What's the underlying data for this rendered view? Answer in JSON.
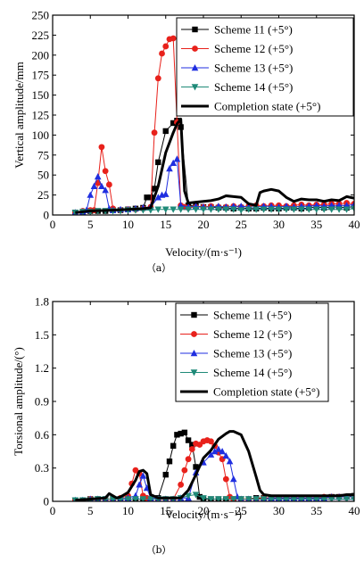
{
  "chart_data": [
    {
      "type": "line",
      "caption": "（a）",
      "xlabel": "Velocity/(m·s⁻¹)",
      "ylabel": "Vertical amplitude/mm",
      "xlim": [
        0,
        40
      ],
      "ylim": [
        0,
        250
      ],
      "xticks": [
        0,
        5,
        10,
        15,
        20,
        25,
        30,
        35,
        40
      ],
      "xtick_labels": [
        "0",
        "5",
        "10",
        "15",
        "20",
        "25",
        "30",
        "35",
        "40"
      ],
      "yticks": [
        0,
        25,
        50,
        75,
        100,
        125,
        150,
        175,
        200,
        225,
        250
      ],
      "ytick_labels": [
        "0",
        "25",
        "50",
        "75",
        "100",
        "125",
        "150",
        "175",
        "200",
        "225",
        "250"
      ],
      "legend_position": "top-right",
      "series": [
        {
          "name": "Scheme 11 (+5°)",
          "color": "#000000",
          "marker": "square",
          "line_width": 1,
          "x": [
            3,
            4,
            5,
            6,
            7,
            8,
            9,
            10,
            11,
            12,
            12.5,
            13,
            13.5,
            14,
            15,
            16,
            16.5,
            17,
            18,
            19,
            20,
            21,
            22,
            23,
            24,
            25,
            26,
            27,
            28,
            29,
            30,
            31,
            32,
            33,
            34,
            35,
            36,
            37,
            38,
            39,
            40
          ],
          "y": [
            3,
            4,
            5,
            5,
            5,
            6,
            6,
            7,
            8,
            9,
            22,
            22,
            33,
            66,
            105,
            115,
            118,
            110,
            12,
            11,
            10,
            10,
            9,
            9,
            8,
            9,
            8,
            8,
            9,
            8,
            8,
            9,
            9,
            8,
            9,
            10,
            9,
            10,
            10,
            9,
            11
          ]
        },
        {
          "name": "Scheme 12 (+5°)",
          "color": "#e8211b",
          "marker": "circle",
          "line_width": 1,
          "x": [
            3,
            4,
            5,
            5.5,
            6,
            6.5,
            7,
            7.5,
            8,
            9,
            10,
            11,
            12,
            13,
            13.5,
            14,
            14.5,
            15,
            15.5,
            16,
            16.5,
            17,
            17.5,
            18,
            19,
            20,
            21,
            22,
            23,
            24,
            25,
            26,
            27,
            28,
            29,
            30,
            31,
            32,
            33,
            34,
            35,
            36,
            37,
            38,
            39,
            40
          ],
          "y": [
            3,
            5,
            6,
            6,
            40,
            85,
            55,
            38,
            8,
            6,
            7,
            7,
            8,
            10,
            103,
            171,
            202,
            211,
            220,
            221,
            116,
            12,
            10,
            9,
            10,
            10,
            11,
            10,
            10,
            11,
            10,
            11,
            12,
            11,
            12,
            12,
            11,
            12,
            13,
            12,
            13,
            13,
            14,
            14,
            15,
            14
          ]
        },
        {
          "name": "Scheme 13 (+5°)",
          "color": "#1f2ee0",
          "marker": "triangle-up",
          "line_width": 1,
          "x": [
            3,
            4,
            4.5,
            5,
            5.5,
            6,
            6.5,
            7,
            7.5,
            8,
            9,
            10,
            11,
            12,
            13,
            14,
            14.5,
            15,
            15.5,
            16,
            16.5,
            17,
            18,
            19,
            20,
            21,
            22,
            23,
            24,
            25,
            26,
            27,
            28,
            29,
            30,
            31,
            32,
            33,
            34,
            35,
            36,
            37,
            38,
            39,
            40
          ],
          "y": [
            3,
            4,
            6,
            25,
            36,
            48,
            36,
            31,
            8,
            6,
            7,
            7,
            8,
            9,
            10,
            22,
            25,
            26,
            58,
            65,
            70,
            12,
            10,
            11,
            10,
            10,
            11,
            10,
            11,
            11,
            10,
            10,
            11,
            11,
            10,
            11,
            10,
            11,
            11,
            12,
            11,
            12,
            12,
            12,
            13
          ]
        },
        {
          "name": "Scheme 14 (+5°)",
          "color": "#1f8a78",
          "marker": "triangle-down",
          "line_width": 1,
          "x": [
            3,
            4,
            5,
            6,
            7,
            8,
            9,
            10,
            11,
            12,
            13,
            14,
            15,
            16,
            17,
            18,
            19,
            20,
            21,
            22,
            23,
            24,
            25,
            26,
            27,
            28,
            29,
            30,
            31,
            32,
            33,
            34,
            35,
            36,
            37,
            38,
            39,
            40
          ],
          "y": [
            3,
            4,
            4,
            5,
            5,
            5,
            5,
            6,
            6,
            6,
            6,
            7,
            7,
            7,
            7,
            7,
            7,
            7,
            7,
            7,
            7,
            7,
            6,
            7,
            7,
            7,
            7,
            7,
            7,
            7,
            7,
            7,
            7,
            7,
            7,
            7,
            7,
            8
          ]
        },
        {
          "name": "Completion state (+5°)",
          "color": "#000000",
          "marker": "none",
          "line_width": 3,
          "x": [
            3,
            5,
            8,
            10,
            12,
            13,
            14,
            15,
            16,
            16.5,
            17,
            17.5,
            18,
            19,
            20,
            21,
            22,
            23,
            24,
            25,
            26,
            27,
            27.5,
            28,
            29,
            30,
            31,
            32,
            33,
            34,
            35,
            36,
            37,
            38,
            39,
            40
          ],
          "y": [
            3,
            5,
            6,
            7,
            8,
            9,
            36,
            78,
            103,
            114,
            120,
            30,
            15,
            16,
            17,
            18,
            20,
            24,
            23,
            22,
            14,
            12,
            28,
            30,
            32,
            30,
            22,
            17,
            20,
            19,
            19,
            17,
            19,
            18,
            23,
            21
          ]
        }
      ]
    },
    {
      "type": "line",
      "caption": "（b）",
      "xlabel": "Velocity/(m·s⁻¹)",
      "ylabel": "Torsional amplitude/(°)",
      "xlim": [
        0,
        40
      ],
      "ylim": [
        0,
        1.8
      ],
      "xticks": [
        0,
        5,
        10,
        15,
        20,
        25,
        30,
        35,
        40
      ],
      "xtick_labels": [
        "0",
        "5",
        "10",
        "15",
        "20",
        "25",
        "30",
        "35",
        "40"
      ],
      "yticks": [
        0,
        0.3,
        0.6,
        0.9,
        1.2,
        1.5,
        1.8
      ],
      "ytick_labels": [
        "0",
        "0.3",
        "0.6",
        "0.9",
        "1.2",
        "1.5",
        "1.8"
      ],
      "legend_position": "top-right",
      "series": [
        {
          "name": "Scheme 11 (+5°)",
          "color": "#000000",
          "marker": "square",
          "line_width": 1,
          "x": [
            3,
            4,
            5,
            6,
            7,
            8,
            9,
            10,
            11,
            12,
            13,
            14,
            15,
            15.5,
            16,
            16.5,
            17,
            17.5,
            18,
            18.5,
            19,
            19.5,
            20,
            21,
            22,
            23,
            24,
            25,
            26,
            27,
            28,
            29,
            30,
            31,
            32,
            33,
            34,
            35,
            36,
            37,
            38,
            39,
            40
          ],
          "y": [
            0.01,
            0.01,
            0.02,
            0.02,
            0.02,
            0.02,
            0.02,
            0.02,
            0.02,
            0.02,
            0.02,
            0.03,
            0.24,
            0.36,
            0.5,
            0.6,
            0.61,
            0.62,
            0.55,
            0.51,
            0.31,
            0.04,
            0.02,
            0.02,
            0.02,
            0.02,
            0.02,
            0.02,
            0.02,
            0.03,
            0.03,
            0.03,
            0.03,
            0.03,
            0.03,
            0.03,
            0.03,
            0.03,
            0.03,
            0.04,
            0.04,
            0.04,
            0.05
          ]
        },
        {
          "name": "Scheme 12 (+5°)",
          "color": "#e8211b",
          "marker": "circle",
          "line_width": 1,
          "x": [
            3,
            4,
            5,
            6,
            7,
            8,
            9,
            10,
            10.5,
            11,
            11.5,
            12,
            12.5,
            13,
            14,
            15,
            16,
            17,
            17.5,
            18,
            18.5,
            19,
            19.5,
            20,
            20.5,
            21,
            21.5,
            22,
            22.5,
            23,
            23.5,
            24,
            25,
            26,
            27,
            28,
            29,
            30,
            31,
            32,
            33,
            34,
            35,
            36,
            37,
            38,
            39,
            40
          ],
          "y": [
            0.01,
            0.01,
            0.02,
            0.02,
            0.02,
            0.02,
            0.03,
            0.05,
            0.16,
            0.28,
            0.25,
            0.05,
            0.03,
            0.02,
            0.02,
            0.02,
            0.02,
            0.15,
            0.28,
            0.38,
            0.47,
            0.52,
            0.51,
            0.54,
            0.55,
            0.54,
            0.5,
            0.44,
            0.38,
            0.2,
            0.04,
            0.02,
            0.02,
            0.02,
            0.02,
            0.03,
            0.03,
            0.03,
            0.03,
            0.03,
            0.03,
            0.03,
            0.03,
            0.04,
            0.04,
            0.04,
            0.04,
            0.04
          ]
        },
        {
          "name": "Scheme 13 (+5°)",
          "color": "#1f2ee0",
          "marker": "triangle-up",
          "line_width": 1,
          "x": [
            3,
            4,
            5,
            6,
            7,
            8,
            9,
            10,
            11,
            11.5,
            12,
            12.5,
            13,
            14,
            15,
            16,
            17,
            18,
            19,
            20,
            21,
            21.5,
            22,
            22.5,
            23,
            23.5,
            24,
            24.5,
            25,
            26,
            27,
            28,
            29,
            30,
            31,
            32,
            33,
            34,
            35,
            36,
            37,
            38,
            39,
            40
          ],
          "y": [
            0.01,
            0.01,
            0.02,
            0.02,
            0.02,
            0.02,
            0.02,
            0.03,
            0.05,
            0.15,
            0.23,
            0.12,
            0.03,
            0.02,
            0.02,
            0.02,
            0.03,
            0.03,
            0.26,
            0.35,
            0.42,
            0.45,
            0.47,
            0.45,
            0.41,
            0.36,
            0.2,
            0.04,
            0.02,
            0.02,
            0.02,
            0.02,
            0.03,
            0.03,
            0.03,
            0.03,
            0.03,
            0.03,
            0.03,
            0.03,
            0.04,
            0.04,
            0.04,
            0.04
          ]
        },
        {
          "name": "Scheme 14 (+5°)",
          "color": "#1f8a78",
          "marker": "triangle-down",
          "line_width": 1,
          "x": [
            3,
            4,
            5,
            6,
            7,
            8,
            9,
            10,
            11,
            12,
            13,
            14,
            15,
            16,
            17,
            18,
            19,
            20,
            21,
            22,
            23,
            24,
            25,
            26,
            27,
            28,
            29,
            30,
            31,
            32,
            33,
            34,
            35,
            36,
            37,
            38,
            39,
            40
          ],
          "y": [
            0.01,
            0.01,
            0.01,
            0.02,
            0.02,
            0.02,
            0.02,
            0.02,
            0.02,
            0.02,
            0.02,
            0.02,
            0.02,
            0.02,
            0.03,
            0.05,
            0.06,
            0.03,
            0.02,
            0.02,
            0.02,
            0.02,
            0.02,
            0.02,
            0.02,
            0.02,
            0.02,
            0.02,
            0.02,
            0.02,
            0.02,
            0.02,
            0.02,
            0.02,
            0.02,
            0.02,
            0.02,
            0.02
          ]
        },
        {
          "name": "Completion state (+5°)",
          "color": "#000000",
          "marker": "none",
          "line_width": 3,
          "x": [
            3,
            5,
            7,
            7.5,
            8,
            8.5,
            9,
            10,
            11,
            11.5,
            12,
            12.5,
            13,
            14,
            15,
            16,
            17,
            18,
            19,
            20,
            21,
            22,
            23,
            23.5,
            24,
            25,
            26,
            27,
            27.5,
            28,
            29,
            30,
            31,
            32,
            33,
            34,
            35,
            36,
            37,
            38,
            39,
            40
          ],
          "y": [
            0.01,
            0.02,
            0.03,
            0.07,
            0.05,
            0.03,
            0.04,
            0.08,
            0.19,
            0.27,
            0.28,
            0.25,
            0.06,
            0.03,
            0.03,
            0.03,
            0.03,
            0.1,
            0.24,
            0.39,
            0.46,
            0.56,
            0.61,
            0.63,
            0.63,
            0.6,
            0.45,
            0.22,
            0.1,
            0.06,
            0.05,
            0.05,
            0.05,
            0.05,
            0.05,
            0.05,
            0.05,
            0.05,
            0.05,
            0.05,
            0.06,
            0.06
          ]
        }
      ]
    }
  ]
}
